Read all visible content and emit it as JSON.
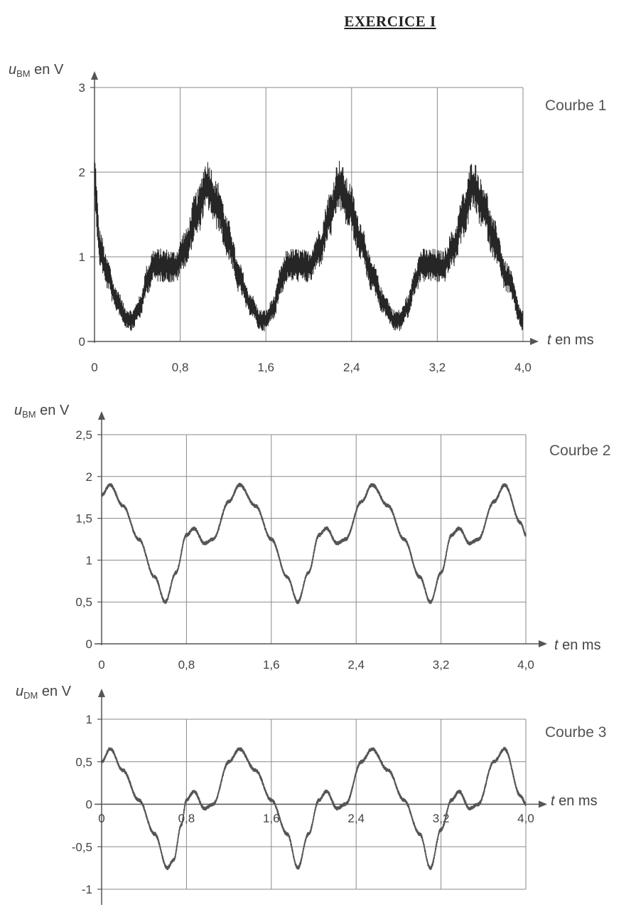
{
  "page": {
    "title": "EXERCICE I"
  },
  "chart_data": [
    {
      "type": "line",
      "curve_name": "Courbe 1",
      "ylabel": {
        "main": "u",
        "sub": "BM",
        "rest": " en V"
      },
      "xlabel": {
        "main": "t",
        "rest": " en ms"
      },
      "xlim": [
        0,
        4.0
      ],
      "ylim": [
        0,
        3
      ],
      "x_ticks": [
        "0",
        "0,8",
        "1,6",
        "2,4",
        "3,2",
        "4,0"
      ],
      "y_ticks": [
        "0",
        "1",
        "2",
        "3"
      ],
      "grid": true,
      "noise_amplitude": 0.3,
      "series": [
        {
          "x": [
            0,
            0.05,
            0.12,
            0.2,
            0.3,
            0.35,
            0.42,
            0.5,
            0.55,
            0.65,
            0.75,
            0.85,
            0.95,
            1.05,
            1.15,
            1.25,
            1.35,
            1.45,
            1.55,
            1.6,
            1.67,
            1.75,
            1.8,
            1.9,
            2.0,
            2.1,
            2.2,
            2.28,
            2.38,
            2.48,
            2.6,
            2.7,
            2.8,
            2.85,
            2.92,
            3.0,
            3.05,
            3.15,
            3.25,
            3.35,
            3.45,
            3.53,
            3.63,
            3.73,
            3.85,
            4.0
          ],
          "y": [
            1.9,
            1.1,
            0.8,
            0.5,
            0.28,
            0.25,
            0.4,
            0.75,
            0.9,
            0.9,
            0.88,
            1.1,
            1.5,
            1.85,
            1.6,
            1.2,
            0.75,
            0.45,
            0.25,
            0.25,
            0.4,
            0.75,
            0.9,
            0.9,
            0.88,
            1.1,
            1.5,
            1.85,
            1.6,
            1.2,
            0.75,
            0.45,
            0.25,
            0.25,
            0.4,
            0.75,
            0.9,
            0.9,
            0.88,
            1.1,
            1.5,
            1.85,
            1.6,
            1.2,
            0.75,
            0.25
          ]
        }
      ]
    },
    {
      "type": "line",
      "curve_name": "Courbe 2",
      "ylabel": {
        "main": "u",
        "sub": "BM",
        "rest": " en V"
      },
      "xlabel": {
        "main": "t",
        "rest": " en ms"
      },
      "xlim": [
        0,
        4.0
      ],
      "ylim": [
        0,
        2.5
      ],
      "x_ticks": [
        "0",
        "0,8",
        "1,6",
        "2,4",
        "3,2",
        "4,0"
      ],
      "y_ticks": [
        "0",
        "0,5",
        "1",
        "1,5",
        "2",
        "2,5"
      ],
      "grid": true,
      "noise_amplitude": 0.04,
      "series": [
        {
          "x": [
            0,
            0.08,
            0.2,
            0.35,
            0.5,
            0.6,
            0.7,
            0.8,
            0.87,
            0.97,
            1.05,
            1.2,
            1.3,
            1.45,
            1.6,
            1.75,
            1.85,
            1.95,
            2.05,
            2.12,
            2.22,
            2.3,
            2.45,
            2.55,
            2.7,
            2.85,
            3.0,
            3.1,
            3.2,
            3.3,
            3.37,
            3.47,
            3.55,
            3.7,
            3.8,
            3.95,
            4.0
          ],
          "y": [
            1.78,
            1.9,
            1.65,
            1.25,
            0.8,
            0.5,
            0.85,
            1.3,
            1.38,
            1.2,
            1.25,
            1.7,
            1.9,
            1.65,
            1.25,
            0.8,
            0.5,
            0.85,
            1.3,
            1.38,
            1.2,
            1.25,
            1.7,
            1.9,
            1.65,
            1.25,
            0.8,
            0.5,
            0.85,
            1.3,
            1.38,
            1.2,
            1.25,
            1.7,
            1.9,
            1.45,
            1.3
          ]
        }
      ]
    },
    {
      "type": "line",
      "curve_name": "Courbe 3",
      "ylabel": {
        "main": "u",
        "sub": "DM",
        "rest": " en V"
      },
      "xlabel": {
        "main": "t",
        "rest": " en ms"
      },
      "xlim": [
        0,
        4.0
      ],
      "ylim": [
        -1,
        1
      ],
      "x_ticks": [
        "0",
        "0,8",
        "1,6",
        "2,4",
        "3,2",
        "4,0"
      ],
      "y_ticks": [
        "-1",
        "-0,5",
        "0",
        "0,5",
        "1"
      ],
      "grid": true,
      "noise_amplitude": 0.04,
      "series": [
        {
          "x": [
            0,
            0.08,
            0.2,
            0.35,
            0.5,
            0.62,
            0.68,
            0.75,
            0.8,
            0.87,
            0.97,
            1.05,
            1.2,
            1.3,
            1.45,
            1.6,
            1.75,
            1.85,
            1.95,
            2.05,
            2.12,
            2.22,
            2.3,
            2.45,
            2.55,
            2.7,
            2.85,
            3.0,
            3.1,
            3.2,
            3.3,
            3.37,
            3.47,
            3.55,
            3.7,
            3.8,
            3.95,
            4.0
          ],
          "y": [
            0.5,
            0.65,
            0.4,
            0.05,
            -0.35,
            -0.75,
            -0.65,
            -0.25,
            0.05,
            0.15,
            -0.05,
            0.0,
            0.5,
            0.65,
            0.4,
            0.05,
            -0.35,
            -0.75,
            -0.35,
            0.05,
            0.15,
            -0.05,
            0.0,
            0.5,
            0.65,
            0.4,
            0.05,
            -0.35,
            -0.75,
            -0.3,
            0.05,
            0.15,
            -0.05,
            0.0,
            0.5,
            0.65,
            0.1,
            0.0
          ]
        }
      ]
    }
  ]
}
